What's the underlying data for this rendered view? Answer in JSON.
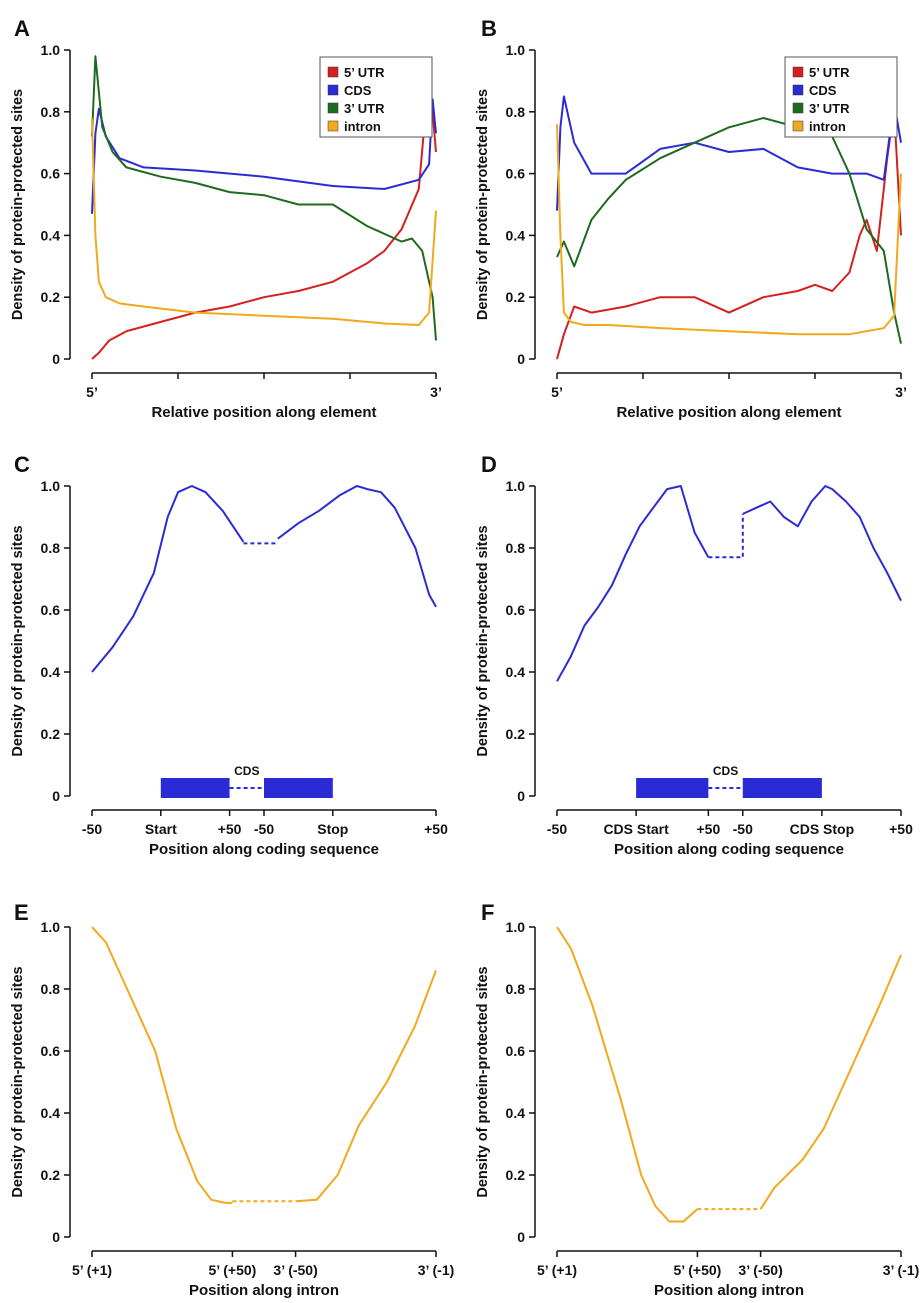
{
  "colors": {
    "utr5": "#d42020",
    "cds": "#2b2bd6",
    "utr3": "#1e6a1e",
    "intron": "#f2a81c",
    "axis": "#111111"
  },
  "y_axis_label": "Density of protein-protected sites",
  "y_ticks": [
    "0",
    "0.2",
    "0.4",
    "0.6",
    "0.8",
    "1.0"
  ],
  "chart_data": [
    {
      "panel": "A",
      "type": "line",
      "xlabel": "Relative position along element",
      "ylabel": "Density of protein-protected sites",
      "x_tick_labels": [
        "5’",
        "",
        "",
        "",
        "3’"
      ],
      "ylim": [
        0,
        1.0
      ],
      "legend": [
        "5’ UTR",
        "CDS",
        "3’ UTR",
        "intron"
      ],
      "legend_position": "top-right",
      "series": [
        {
          "name": "5’ UTR",
          "color_key": "utr5",
          "x": [
            0,
            0.02,
            0.05,
            0.1,
            0.2,
            0.3,
            0.4,
            0.5,
            0.6,
            0.7,
            0.8,
            0.85,
            0.9,
            0.95,
            0.98,
            1.0
          ],
          "values": [
            0.0,
            0.02,
            0.06,
            0.09,
            0.12,
            0.15,
            0.17,
            0.2,
            0.22,
            0.25,
            0.31,
            0.35,
            0.42,
            0.55,
            0.93,
            0.67
          ]
        },
        {
          "name": "CDS",
          "color_key": "cds",
          "x": [
            0,
            0.01,
            0.02,
            0.04,
            0.08,
            0.15,
            0.3,
            0.5,
            0.7,
            0.85,
            0.95,
            0.98,
            0.99,
            1.0
          ],
          "values": [
            0.47,
            0.73,
            0.81,
            0.72,
            0.65,
            0.62,
            0.61,
            0.59,
            0.56,
            0.55,
            0.58,
            0.63,
            0.84,
            0.73
          ]
        },
        {
          "name": "3’ UTR",
          "color_key": "utr3",
          "x": [
            0,
            0.01,
            0.03,
            0.06,
            0.1,
            0.2,
            0.3,
            0.4,
            0.5,
            0.6,
            0.7,
            0.8,
            0.9,
            0.93,
            0.96,
            0.99,
            1.0
          ],
          "values": [
            0.72,
            0.98,
            0.75,
            0.67,
            0.62,
            0.59,
            0.57,
            0.54,
            0.53,
            0.5,
            0.5,
            0.43,
            0.38,
            0.39,
            0.35,
            0.2,
            0.06
          ]
        },
        {
          "name": "intron",
          "color_key": "intron",
          "x": [
            0,
            0.01,
            0.02,
            0.04,
            0.08,
            0.15,
            0.3,
            0.5,
            0.7,
            0.85,
            0.95,
            0.98,
            1.0
          ],
          "values": [
            0.78,
            0.4,
            0.25,
            0.2,
            0.18,
            0.17,
            0.15,
            0.14,
            0.13,
            0.115,
            0.11,
            0.15,
            0.48
          ]
        }
      ]
    },
    {
      "panel": "B",
      "type": "line",
      "xlabel": "Relative position along element",
      "ylabel": "Density of protein-protected sites",
      "x_tick_labels": [
        "5’",
        "",
        "",
        "",
        "3’"
      ],
      "ylim": [
        0,
        1.0
      ],
      "legend": [
        "5’ UTR",
        "CDS",
        "3’ UTR",
        "intron"
      ],
      "legend_position": "top-right",
      "series": [
        {
          "name": "5’ UTR",
          "color_key": "utr5",
          "x": [
            0,
            0.02,
            0.05,
            0.1,
            0.2,
            0.3,
            0.4,
            0.5,
            0.6,
            0.7,
            0.75,
            0.8,
            0.85,
            0.88,
            0.9,
            0.93,
            0.96,
            0.98,
            1.0
          ],
          "values": [
            0.0,
            0.08,
            0.17,
            0.15,
            0.17,
            0.2,
            0.2,
            0.15,
            0.2,
            0.22,
            0.24,
            0.22,
            0.28,
            0.4,
            0.45,
            0.35,
            0.65,
            0.81,
            0.4
          ]
        },
        {
          "name": "CDS",
          "color_key": "cds",
          "x": [
            0,
            0.01,
            0.02,
            0.05,
            0.1,
            0.2,
            0.3,
            0.4,
            0.5,
            0.6,
            0.7,
            0.8,
            0.9,
            0.95,
            0.98,
            1.0
          ],
          "values": [
            0.48,
            0.75,
            0.85,
            0.7,
            0.6,
            0.6,
            0.68,
            0.7,
            0.67,
            0.68,
            0.62,
            0.6,
            0.6,
            0.58,
            0.83,
            0.7
          ]
        },
        {
          "name": "3’ UTR",
          "color_key": "utr3",
          "x": [
            0,
            0.02,
            0.05,
            0.1,
            0.15,
            0.2,
            0.3,
            0.4,
            0.5,
            0.6,
            0.7,
            0.8,
            0.85,
            0.9,
            0.95,
            0.98,
            1.0
          ],
          "values": [
            0.33,
            0.38,
            0.3,
            0.45,
            0.52,
            0.58,
            0.65,
            0.7,
            0.75,
            0.78,
            0.75,
            0.72,
            0.6,
            0.42,
            0.35,
            0.15,
            0.05
          ]
        },
        {
          "name": "intron",
          "color_key": "intron",
          "x": [
            0,
            0.01,
            0.02,
            0.04,
            0.08,
            0.15,
            0.3,
            0.5,
            0.7,
            0.85,
            0.95,
            0.98,
            1.0
          ],
          "values": [
            0.76,
            0.4,
            0.15,
            0.12,
            0.11,
            0.11,
            0.1,
            0.09,
            0.08,
            0.08,
            0.1,
            0.14,
            0.6
          ]
        }
      ]
    },
    {
      "panel": "C",
      "type": "line",
      "xlabel": "Position along coding sequence",
      "ylabel": "Density of protein-protected sites",
      "x_tick_labels": [
        "-50",
        "Start",
        "+50",
        "-50",
        "Stop",
        "+50"
      ],
      "ylim": [
        0,
        1.0
      ],
      "gene_model_label": "CDS",
      "segments": [
        {
          "color_key": "cds",
          "dash": false,
          "x": [
            0,
            0.3,
            0.6,
            0.9,
            1.1,
            1.25,
            1.45,
            1.65,
            1.9,
            2.2
          ],
          "values": [
            0.4,
            0.48,
            0.58,
            0.72,
            0.9,
            0.98,
            1.0,
            0.98,
            0.92,
            0.82
          ]
        },
        {
          "color_key": "cds",
          "dash": true,
          "x": [
            2.2,
            2.7
          ],
          "values": [
            0.815,
            0.815
          ]
        },
        {
          "color_key": "cds",
          "dash": false,
          "x": [
            2.7,
            3.0,
            3.3,
            3.6,
            3.85,
            4.0,
            4.2,
            4.4,
            4.7,
            4.9,
            5.0
          ],
          "values": [
            0.83,
            0.88,
            0.92,
            0.97,
            1.0,
            0.99,
            0.98,
            0.93,
            0.8,
            0.65,
            0.61
          ]
        }
      ]
    },
    {
      "panel": "D",
      "type": "line",
      "xlabel": "Position along coding sequence",
      "ylabel": "Density of protein-protected sites",
      "x_tick_labels": [
        "-50",
        "CDS Start",
        "+50",
        "-50",
        "CDS Stop",
        "+50"
      ],
      "ylim": [
        0,
        1.0
      ],
      "gene_model_label": "CDS",
      "segments": [
        {
          "color_key": "cds",
          "dash": false,
          "x": [
            0,
            0.2,
            0.4,
            0.6,
            0.8,
            1.0,
            1.2,
            1.4,
            1.6,
            1.8,
            2.0,
            2.2
          ],
          "values": [
            0.37,
            0.45,
            0.55,
            0.61,
            0.68,
            0.78,
            0.87,
            0.93,
            0.99,
            1.0,
            0.85,
            0.77
          ]
        },
        {
          "color_key": "cds",
          "dash": true,
          "x": [
            2.2,
            2.7,
            2.7
          ],
          "values": [
            0.77,
            0.77,
            0.91
          ]
        },
        {
          "color_key": "cds",
          "dash": false,
          "x": [
            2.7,
            2.9,
            3.1,
            3.3,
            3.5,
            3.7,
            3.9,
            4.0,
            4.2,
            4.4,
            4.6,
            4.8,
            5.0
          ],
          "values": [
            0.91,
            0.93,
            0.95,
            0.9,
            0.87,
            0.95,
            1.0,
            0.99,
            0.95,
            0.9,
            0.8,
            0.72,
            0.63
          ]
        }
      ]
    },
    {
      "panel": "E",
      "type": "line",
      "xlabel": "Position along intron",
      "ylabel": "Density of protein-protected sites",
      "x_tick_labels": [
        "5’ (+1)",
        "5’ (+50)",
        "3’ (-50)",
        "3’ (-1)"
      ],
      "ylim": [
        0,
        1.0
      ],
      "segments": [
        {
          "color_key": "intron",
          "dash": false,
          "x": [
            0,
            0.1,
            0.25,
            0.45,
            0.6,
            0.75,
            0.85,
            0.95,
            1.0
          ],
          "values": [
            1.0,
            0.95,
            0.8,
            0.6,
            0.35,
            0.18,
            0.12,
            0.11,
            0.11
          ]
        },
        {
          "color_key": "intron",
          "dash": true,
          "x": [
            1.0,
            1.45
          ],
          "values": [
            0.115,
            0.115
          ]
        },
        {
          "color_key": "intron",
          "dash": false,
          "x": [
            1.45,
            1.6,
            1.75,
            1.9,
            2.1,
            2.3,
            2.45
          ],
          "values": [
            0.115,
            0.12,
            0.2,
            0.36,
            0.5,
            0.68,
            0.86
          ]
        }
      ]
    },
    {
      "panel": "F",
      "type": "line",
      "xlabel": "Position along intron",
      "ylabel": "Density of protein-protected sites",
      "x_tick_labels": [
        "5’ (+1)",
        "5’ (+50)",
        "3’ (-50)",
        "3’ (-1)"
      ],
      "ylim": [
        0,
        1.0
      ],
      "segments": [
        {
          "color_key": "intron",
          "dash": false,
          "x": [
            0,
            0.1,
            0.25,
            0.45,
            0.6,
            0.7,
            0.8,
            0.9,
            1.0
          ],
          "values": [
            1.0,
            0.93,
            0.75,
            0.45,
            0.2,
            0.1,
            0.05,
            0.05,
            0.09
          ]
        },
        {
          "color_key": "intron",
          "dash": true,
          "x": [
            1.0,
            1.45
          ],
          "values": [
            0.09,
            0.09
          ]
        },
        {
          "color_key": "intron",
          "dash": false,
          "x": [
            1.45,
            1.55,
            1.75,
            1.9,
            2.1,
            2.3,
            2.45
          ],
          "values": [
            0.09,
            0.16,
            0.25,
            0.35,
            0.55,
            0.75,
            0.91
          ]
        }
      ]
    }
  ]
}
